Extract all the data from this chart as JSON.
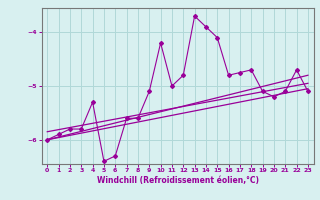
{
  "xlabel": "Windchill (Refroidissement éolien,°C)",
  "bg_color": "#d8f0f0",
  "grid_color": "#b0d8d8",
  "line_color": "#990099",
  "spine_color": "#777777",
  "x_hours": [
    0,
    1,
    2,
    3,
    4,
    5,
    6,
    7,
    8,
    9,
    10,
    11,
    12,
    13,
    14,
    15,
    16,
    17,
    18,
    19,
    20,
    21,
    22,
    23
  ],
  "scatter_y": [
    -6.0,
    -5.9,
    -5.8,
    -5.8,
    -5.3,
    -6.4,
    -6.3,
    -5.6,
    -5.6,
    -5.1,
    -4.2,
    -5.0,
    -4.8,
    -3.7,
    -3.9,
    -4.1,
    -4.8,
    -4.75,
    -4.7,
    -5.1,
    -5.2,
    -5.1,
    -4.7,
    -5.1
  ],
  "line1_x": [
    0,
    23
  ],
  "line1_y": [
    -6.0,
    -4.8
  ],
  "line2_x": [
    0,
    23
  ],
  "line2_y": [
    -6.0,
    -5.05
  ],
  "line3_x": [
    0,
    23
  ],
  "line3_y": [
    -5.85,
    -4.95
  ],
  "ylim": [
    -6.45,
    -3.55
  ],
  "yticks": [
    -6,
    -5,
    -4
  ],
  "xlim": [
    -0.5,
    23.5
  ],
  "xticks": [
    0,
    1,
    2,
    3,
    4,
    5,
    6,
    7,
    8,
    9,
    10,
    11,
    12,
    13,
    14,
    15,
    16,
    17,
    18,
    19,
    20,
    21,
    22,
    23
  ]
}
